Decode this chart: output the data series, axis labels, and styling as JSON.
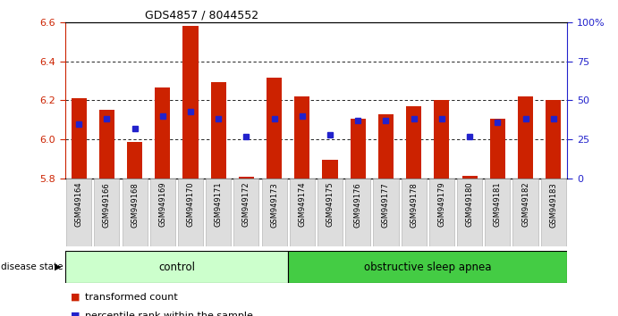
{
  "title": "GDS4857 / 8044552",
  "samples": [
    "GSM949164",
    "GSM949166",
    "GSM949168",
    "GSM949169",
    "GSM949170",
    "GSM949171",
    "GSM949172",
    "GSM949173",
    "GSM949174",
    "GSM949175",
    "GSM949176",
    "GSM949177",
    "GSM949178",
    "GSM949179",
    "GSM949180",
    "GSM949181",
    "GSM949182",
    "GSM949183"
  ],
  "bar_heights": [
    6.21,
    6.15,
    5.985,
    6.265,
    6.58,
    6.295,
    5.81,
    6.315,
    6.22,
    5.895,
    6.105,
    6.13,
    6.17,
    6.2,
    5.815,
    6.105,
    6.22,
    6.2
  ],
  "percentile_pct": [
    35,
    38,
    32,
    40,
    43,
    38,
    27,
    38,
    40,
    28,
    37,
    37,
    38,
    38,
    27,
    36,
    38,
    38
  ],
  "ymin": 5.8,
  "ymax": 6.6,
  "yticks": [
    5.8,
    6.0,
    6.2,
    6.4,
    6.6
  ],
  "right_ytick_labels": [
    "0",
    "25",
    "50",
    "75",
    "100%"
  ],
  "right_ytick_vals": [
    0,
    25,
    50,
    75,
    100
  ],
  "bar_color": "#cc2200",
  "dot_color": "#2222cc",
  "n_control": 8,
  "control_label": "control",
  "disease_label": "obstructive sleep apnea",
  "disease_state_label": "disease state",
  "legend_bar_label": "transformed count",
  "legend_dot_label": "percentile rank within the sample",
  "control_bg": "#ccffcc",
  "disease_bg": "#44cc44",
  "xtick_bg": "#dddddd"
}
